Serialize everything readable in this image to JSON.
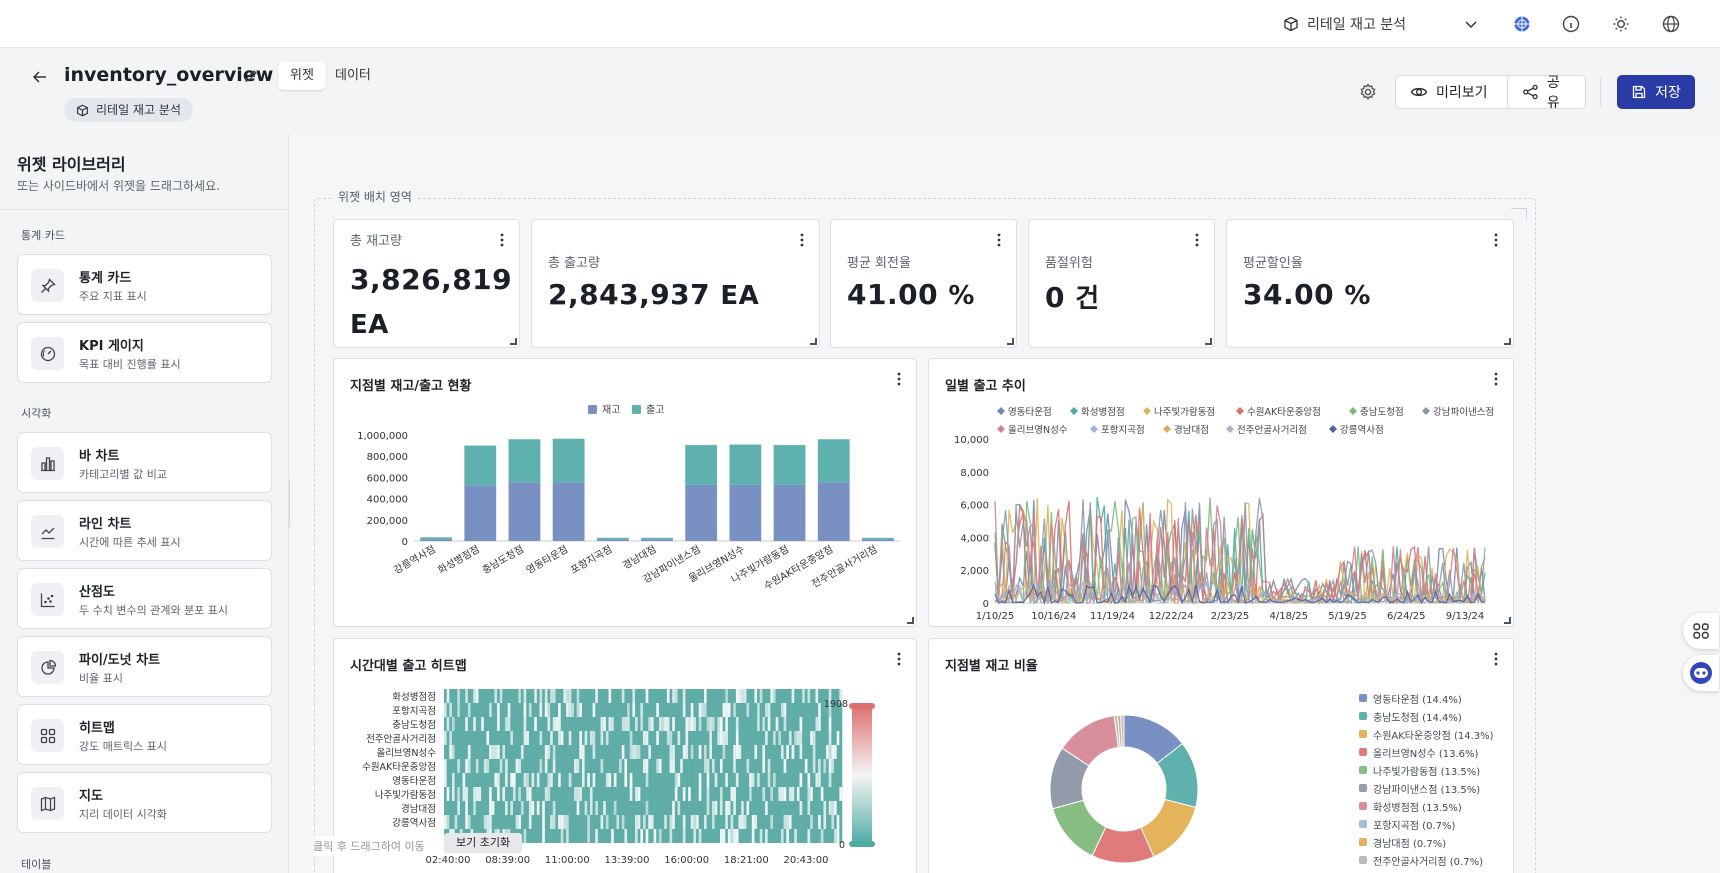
{
  "topbar": {
    "datasource": "리테일 재고 분석",
    "icons": [
      "cube-icon",
      "chevron-down-icon",
      "globe-colored-icon",
      "info-icon",
      "sun-icon",
      "language-icon"
    ]
  },
  "header": {
    "title": "inventory_overview",
    "tabs": [
      {
        "label": "위젯",
        "active": true
      },
      {
        "label": "데이터",
        "active": false
      }
    ],
    "datasource_chip": "리테일 재고 분석",
    "preview_label": "미리보기",
    "share_label": "공유",
    "save_label": "저장",
    "accent": "#2a3ba8"
  },
  "sidebar": {
    "title": "위젯 라이브러리",
    "subtitle": "또는 사이드바에서 위젯을 드래그하세요.",
    "sections": [
      {
        "label": "통계 카드",
        "items": [
          {
            "name": "통계 카드",
            "desc": "주요 지표 표시",
            "icon": "pin-icon"
          },
          {
            "name": "KPI 게이지",
            "desc": "목표 대비 진행률 표시",
            "icon": "gauge-icon"
          }
        ]
      },
      {
        "label": "시각화",
        "items": [
          {
            "name": "바 차트",
            "desc": "카테고리별 값 비교",
            "icon": "bar-chart-icon"
          },
          {
            "name": "라인 차트",
            "desc": "시간에 따른 추세 표시",
            "icon": "line-chart-icon"
          },
          {
            "name": "산점도",
            "desc": "두 수치 변수의 관계와 분포 표시",
            "icon": "scatter-icon"
          },
          {
            "name": "파이/도넛 차트",
            "desc": "비율 표시",
            "icon": "pie-chart-icon"
          },
          {
            "name": "히트맵",
            "desc": "강도 매트릭스 표시",
            "icon": "heatmap-icon"
          },
          {
            "name": "지도",
            "desc": "지리 데이터 시각화",
            "icon": "map-icon"
          }
        ]
      },
      {
        "label": "테이블",
        "items": []
      }
    ]
  },
  "canvas": {
    "drop_zone_label": "위젯 배치 영역",
    "drag_hint": "클릭 후 드래그하여 이동",
    "reset_view_label": "보기 초기화"
  },
  "stats": [
    {
      "label": "총 재고량",
      "value": "3,826,819",
      "unit": "EA"
    },
    {
      "label": "총 출고량",
      "value": "2,843,937",
      "unit": "EA"
    },
    {
      "label": "평균 회전율",
      "value": "41.00",
      "unit": "%"
    },
    {
      "label": "품절위험",
      "value": "0",
      "unit": "건"
    },
    {
      "label": "평균할인율",
      "value": "34.00",
      "unit": "%"
    }
  ],
  "chart_data": [
    {
      "type": "bar",
      "stacked": true,
      "title": "지점별 재고/출고 현황",
      "categories": [
        "강릉역사점",
        "화성병점점",
        "충남도청점",
        "영동타운점",
        "포항지곡점",
        "경남대점",
        "강남파이낸스점",
        "울리브영N성수",
        "나주빛가람동점",
        "수원AK타운중앙점",
        "전주안골사거리점"
      ],
      "series": [
        {
          "name": "재고",
          "color": "#7891c2",
          "values": [
            15000,
            525000,
            555000,
            555000,
            15000,
            15000,
            530000,
            530000,
            530000,
            555000,
            15000
          ]
        },
        {
          "name": "출고",
          "color": "#5fb1ad",
          "values": [
            20000,
            375000,
            405000,
            410000,
            15000,
            15000,
            375000,
            380000,
            375000,
            405000,
            15000
          ]
        }
      ],
      "yticks": [
        "1,000,000",
        "800,000",
        "600,000",
        "400,000",
        "200,000",
        "0"
      ],
      "ylim": [
        0,
        1000000
      ],
      "legend": "top-center"
    },
    {
      "type": "line",
      "title": "일별 출고 추이",
      "legend_items": [
        {
          "name": "영동타운점",
          "color": "#7187b8"
        },
        {
          "name": "화성병점점",
          "color": "#4eaba4"
        },
        {
          "name": "나주빛가람동점",
          "color": "#e2b355"
        },
        {
          "name": "수원AK타운중앙점",
          "color": "#dd6f6f"
        },
        {
          "name": "충남도청점",
          "color": "#7cbb7c"
        },
        {
          "name": "강남파이낸스점",
          "color": "#8d96a8"
        },
        {
          "name": "올리브영N성수",
          "color": "#d3828e"
        },
        {
          "name": "포항지곡점",
          "color": "#9db8d6"
        },
        {
          "name": "경남대점",
          "color": "#e2a95c"
        },
        {
          "name": "전주안골사거리점",
          "color": "#b2b5bc"
        },
        {
          "name": "강릉역사점",
          "color": "#4e63a6"
        }
      ],
      "xticks": [
        "1/10/25",
        "10/16/24",
        "11/19/24",
        "12/22/24",
        "2/23/25",
        "4/18/25",
        "5/19/25",
        "6/24/25",
        "9/13/24"
      ],
      "yticks": [
        "10,000",
        "8,000",
        "6,000",
        "4,000",
        "2,000",
        "0"
      ],
      "ylim": [
        0,
        10000
      ]
    },
    {
      "type": "heatmap",
      "title": "시간대별 출고 히트맵",
      "rows": [
        "화성병점점",
        "포항지곡점",
        "충남도청점",
        "전주안골사거리점",
        "올리브영N성수",
        "수원AK타운중앙점",
        "영동타운점",
        "나주빛가람동점",
        "경남대점",
        "강릉역사점"
      ],
      "xticks": [
        "02:40:00",
        "08:39:00",
        "11:00:00",
        "13:39:00",
        "16:00:00",
        "18:21:00",
        "20:43:00"
      ],
      "scale_max": "1908",
      "scale_min": "0"
    },
    {
      "type": "pie",
      "donut": true,
      "title": "지점별 재고 비율",
      "slices": [
        {
          "name": "영동타운점 (14.4%)",
          "value": 14.4,
          "color": "#7891c2"
        },
        {
          "name": "충남도청점 (14.4%)",
          "value": 14.4,
          "color": "#5fb1ad"
        },
        {
          "name": "수원AK타운중앙점 (14.3%)",
          "value": 14.3,
          "color": "#e3b45c"
        },
        {
          "name": "올리브영N성수 (13.6%)",
          "value": 13.6,
          "color": "#e07b7b"
        },
        {
          "name": "나주빛가람동점 (13.5%)",
          "value": 13.5,
          "color": "#86bd83"
        },
        {
          "name": "강남파이낸스점 (13.5%)",
          "value": 13.5,
          "color": "#949cab"
        },
        {
          "name": "화성병점점 (13.5%)",
          "value": 13.5,
          "color": "#d88f9b"
        },
        {
          "name": "포항지곡점 (0.7%)",
          "value": 0.7,
          "color": "#a3bedb"
        },
        {
          "name": "경남대점 (0.7%)",
          "value": 0.7,
          "color": "#e5ad64"
        },
        {
          "name": "전주안골사거리점 (0.7%)",
          "value": 0.7,
          "color": "#b8bbc2"
        }
      ]
    }
  ]
}
